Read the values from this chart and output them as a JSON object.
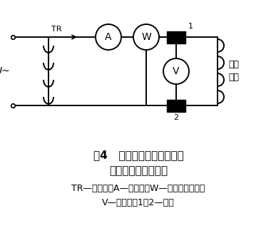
{
  "title_line1": "图4   转子绕组的交流阻抗和",
  "title_line2": "功率损耗测量示意图",
  "caption_line1": "TR—调压器；A—电流表；W—低功率瓦特表；",
  "caption_line2": "V—电压表；1、2—滑环",
  "label_tr": "TR",
  "label_u": "U~",
  "label_a": "A",
  "label_w": "W",
  "label_v": "V",
  "label_1": "1",
  "label_2": "2",
  "label_rotor": "转子\n绕组",
  "bg_color": "#ffffff",
  "line_color": "#000000",
  "fig_width": 3.87,
  "fig_height": 3.48
}
